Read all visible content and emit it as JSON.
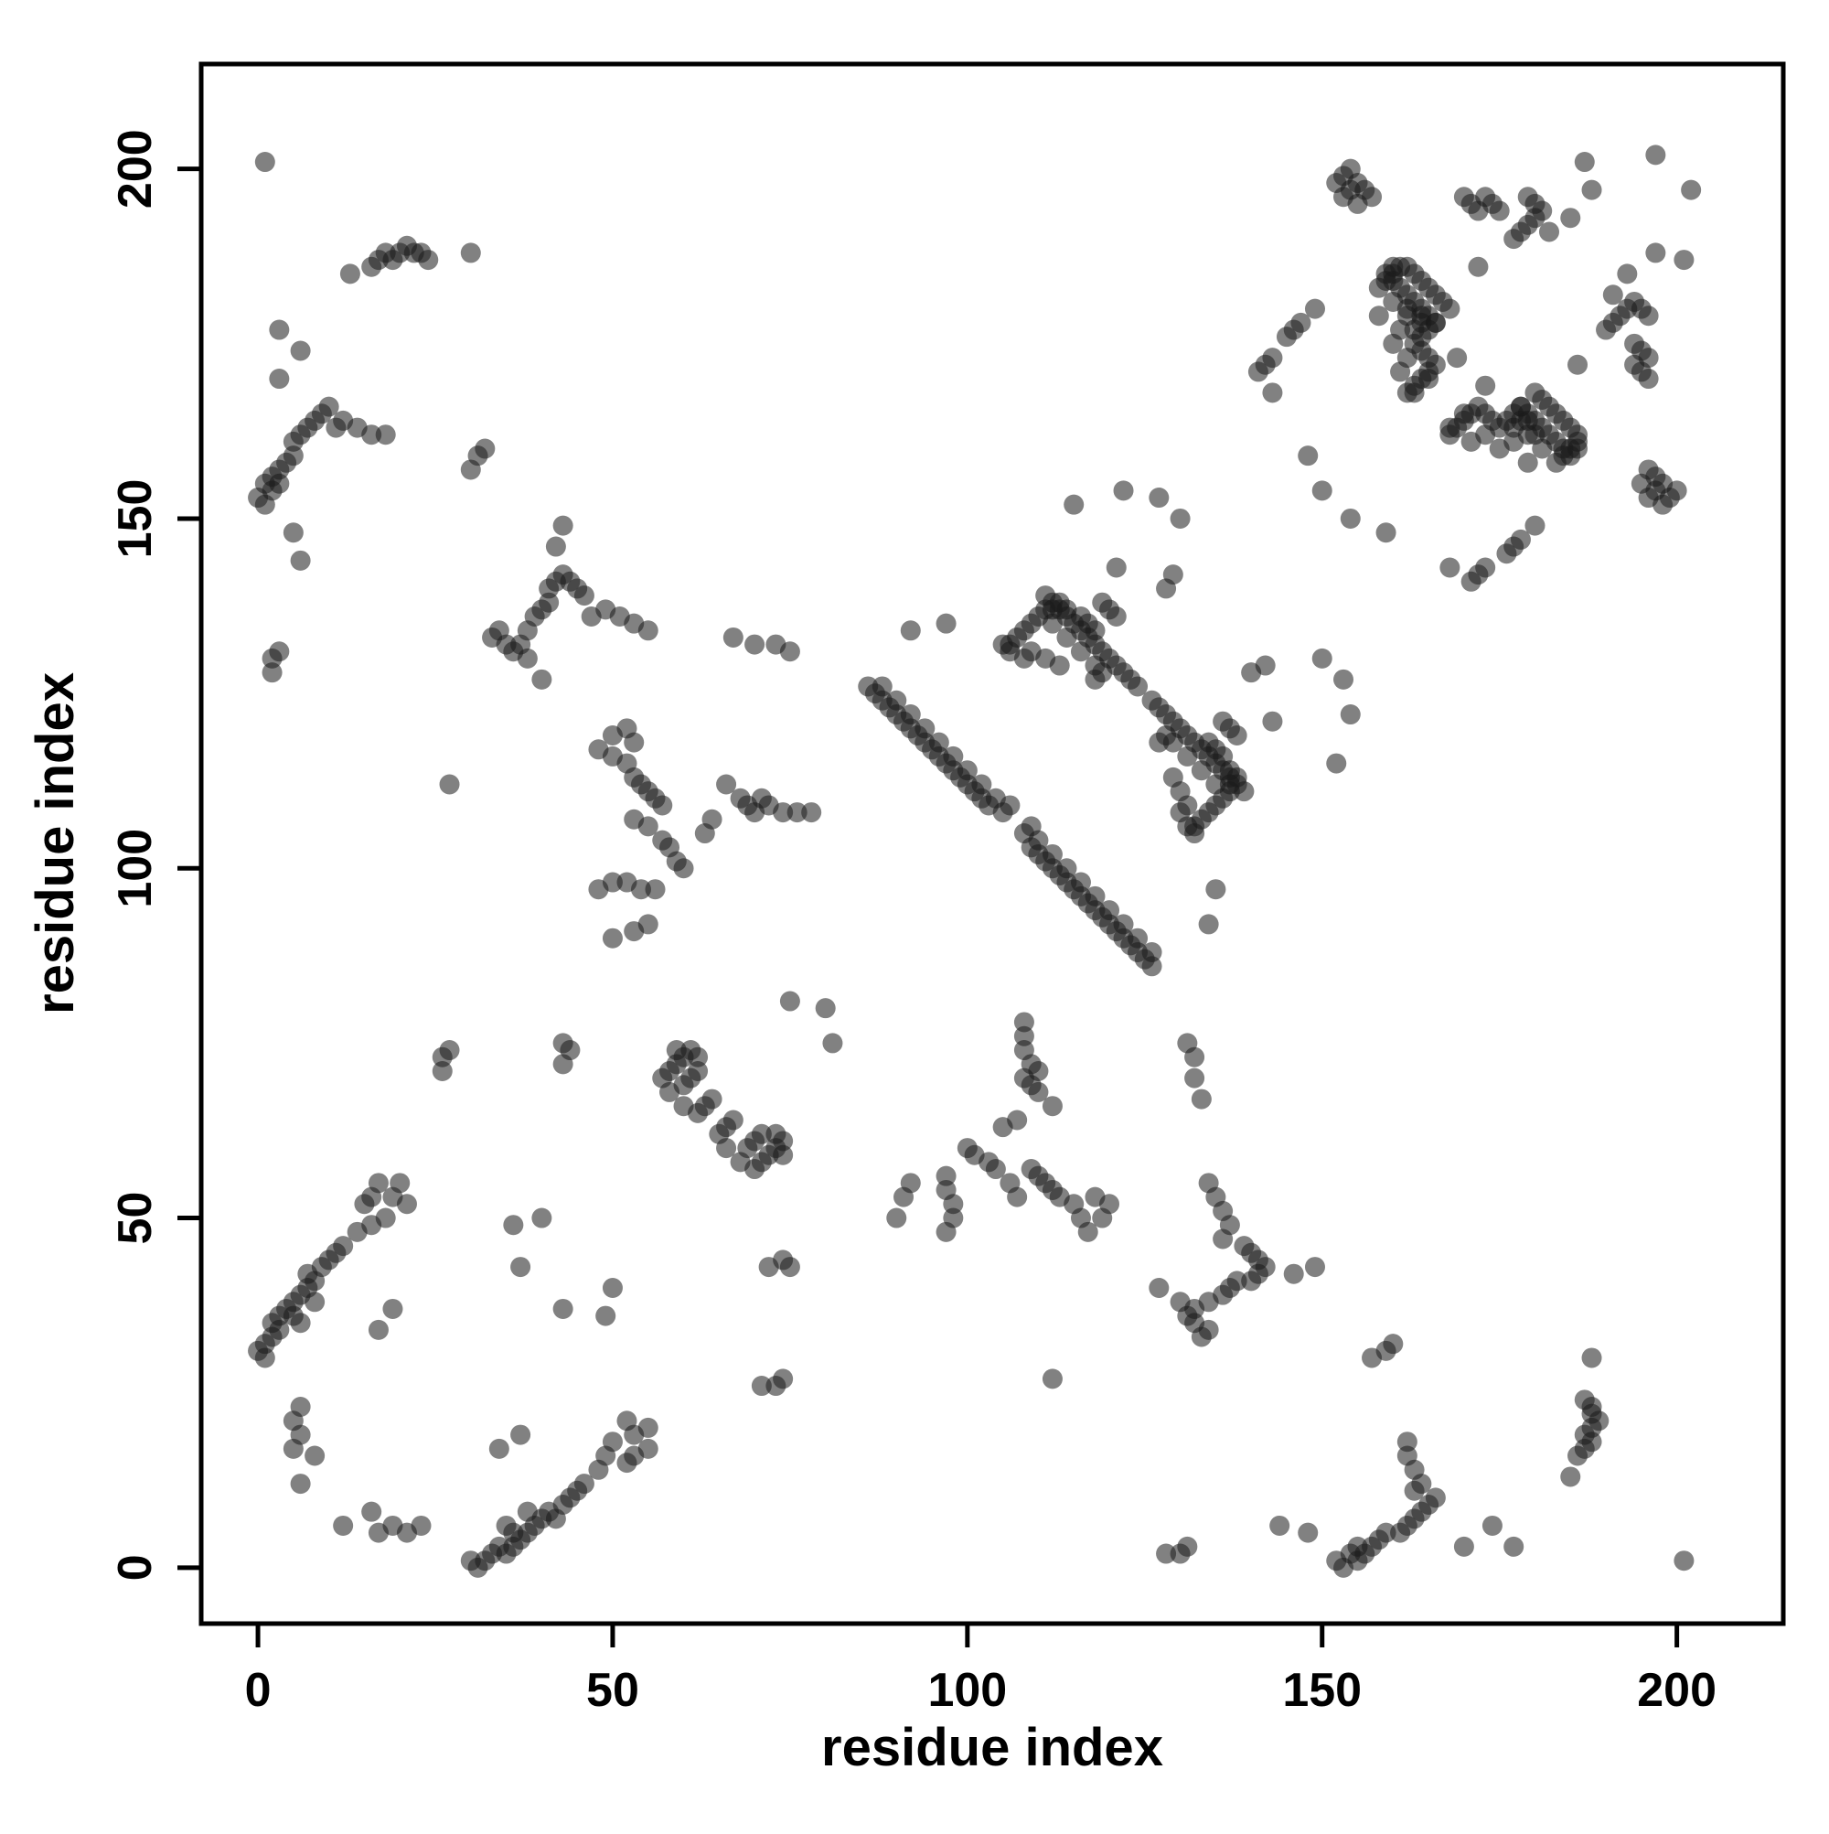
{
  "chart": {
    "xlabel": "residue index",
    "ylabel": "residue index"
  },
  "chart_data": {
    "type": "scatter",
    "title": "",
    "xlabel": "residue index",
    "ylabel": "residue index",
    "xlim": [
      -8,
      215
    ],
    "ylim": [
      -8,
      215
    ],
    "x_ticks": [
      0,
      50,
      100,
      150,
      200
    ],
    "y_ticks": [
      0,
      50,
      100,
      150,
      200
    ],
    "grid": false,
    "legend": null,
    "symmetric": true,
    "point_color": "#1a1a1a",
    "point_opacity": 0.55,
    "point_radius_px": 11,
    "points": [
      [
        1,
        201
      ],
      [
        3,
        177
      ],
      [
        197,
        202
      ],
      [
        187,
        201
      ],
      [
        188,
        197
      ],
      [
        13,
        185
      ],
      [
        16,
        186
      ],
      [
        17,
        187
      ],
      [
        18,
        188
      ],
      [
        19,
        187
      ],
      [
        20,
        188
      ],
      [
        21,
        189
      ],
      [
        22,
        188
      ],
      [
        23,
        188
      ],
      [
        24,
        187
      ],
      [
        30,
        188
      ],
      [
        30,
        157
      ],
      [
        31,
        159
      ],
      [
        32,
        160
      ],
      [
        0,
        153
      ],
      [
        1,
        152
      ],
      [
        1,
        155
      ],
      [
        2,
        154
      ],
      [
        2,
        156
      ],
      [
        3,
        155
      ],
      [
        3,
        157
      ],
      [
        4,
        158
      ],
      [
        5,
        159
      ],
      [
        5,
        161
      ],
      [
        6,
        162
      ],
      [
        7,
        163
      ],
      [
        8,
        164
      ],
      [
        9,
        165
      ],
      [
        10,
        166
      ],
      [
        11,
        163
      ],
      [
        12,
        164
      ],
      [
        14,
        163
      ],
      [
        16,
        162
      ],
      [
        18,
        162
      ],
      [
        5,
        148
      ],
      [
        6,
        144
      ],
      [
        2,
        128
      ],
      [
        2,
        130
      ],
      [
        3,
        131
      ],
      [
        33,
        133
      ],
      [
        34,
        134
      ],
      [
        35,
        132
      ],
      [
        36,
        131
      ],
      [
        37,
        132
      ],
      [
        38,
        130
      ],
      [
        38,
        134
      ],
      [
        39,
        136
      ],
      [
        40,
        137
      ],
      [
        41,
        138
      ],
      [
        41,
        140
      ],
      [
        42,
        141
      ],
      [
        43,
        142
      ],
      [
        44,
        141
      ],
      [
        45,
        140
      ],
      [
        46,
        139
      ],
      [
        47,
        136
      ],
      [
        49,
        137
      ],
      [
        51,
        136
      ],
      [
        53,
        135
      ],
      [
        55,
        134
      ],
      [
        40,
        127
      ],
      [
        42,
        146
      ],
      [
        43,
        149
      ],
      [
        27,
        112
      ],
      [
        26,
        73
      ],
      [
        27,
        74
      ],
      [
        26,
        71
      ],
      [
        6,
        19
      ],
      [
        8,
        16
      ],
      [
        6,
        12
      ],
      [
        5,
        17
      ],
      [
        5,
        21
      ],
      [
        6,
        23
      ],
      [
        17,
        34
      ],
      [
        19,
        37
      ],
      [
        37,
        43
      ],
      [
        36,
        49
      ],
      [
        40,
        50
      ],
      [
        43,
        72
      ],
      [
        44,
        74
      ],
      [
        43,
        75
      ],
      [
        0,
        31
      ],
      [
        1,
        30
      ],
      [
        1,
        32
      ],
      [
        2,
        33
      ],
      [
        2,
        35
      ],
      [
        3,
        34
      ],
      [
        3,
        36
      ],
      [
        4,
        37
      ],
      [
        5,
        36
      ],
      [
        5,
        38
      ],
      [
        6,
        39
      ],
      [
        6,
        35
      ],
      [
        7,
        40
      ],
      [
        7,
        42
      ],
      [
        8,
        38
      ],
      [
        8,
        41
      ],
      [
        9,
        43
      ],
      [
        10,
        44
      ],
      [
        11,
        45
      ],
      [
        12,
        46
      ],
      [
        14,
        48
      ],
      [
        15,
        52
      ],
      [
        16,
        49
      ],
      [
        16,
        53
      ],
      [
        17,
        55
      ],
      [
        18,
        50
      ],
      [
        19,
        53
      ],
      [
        20,
        55
      ],
      [
        21,
        52
      ],
      [
        48,
        117
      ],
      [
        50,
        116
      ],
      [
        52,
        115
      ],
      [
        53,
        113
      ],
      [
        54,
        112
      ],
      [
        55,
        111
      ],
      [
        56,
        110
      ],
      [
        57,
        109
      ],
      [
        53,
        107
      ],
      [
        55,
        106
      ],
      [
        57,
        104
      ],
      [
        58,
        103
      ],
      [
        59,
        101
      ],
      [
        60,
        100
      ],
      [
        52,
        98
      ],
      [
        54,
        97
      ],
      [
        56,
        97
      ],
      [
        48,
        97
      ],
      [
        50,
        98
      ],
      [
        63,
        105
      ],
      [
        64,
        107
      ],
      [
        50,
        119
      ],
      [
        52,
        120
      ],
      [
        53,
        118
      ],
      [
        57,
        70
      ],
      [
        58,
        71
      ],
      [
        59,
        72
      ],
      [
        60,
        73
      ],
      [
        58,
        68
      ],
      [
        60,
        69
      ],
      [
        61,
        70
      ],
      [
        62,
        71
      ],
      [
        60,
        66
      ],
      [
        62,
        65
      ],
      [
        63,
        66
      ],
      [
        64,
        67
      ],
      [
        59,
        74
      ],
      [
        61,
        74
      ],
      [
        62,
        73
      ],
      [
        66,
        112
      ],
      [
        68,
        110
      ],
      [
        69,
        109
      ],
      [
        70,
        108
      ],
      [
        71,
        110
      ],
      [
        72,
        109
      ],
      [
        74,
        108
      ],
      [
        76,
        108
      ],
      [
        78,
        108
      ],
      [
        67,
        133
      ],
      [
        70,
        132
      ],
      [
        73,
        132
      ],
      [
        75,
        131
      ],
      [
        80,
        80
      ],
      [
        81,
        75
      ],
      [
        50,
        90
      ],
      [
        53,
        91
      ],
      [
        55,
        92
      ],
      [
        86,
        126
      ],
      [
        87,
        125
      ],
      [
        88,
        126
      ],
      [
        88,
        124
      ],
      [
        89,
        123
      ],
      [
        90,
        124
      ],
      [
        90,
        122
      ],
      [
        91,
        121
      ],
      [
        92,
        122
      ],
      [
        92,
        120
      ],
      [
        93,
        119
      ],
      [
        94,
        120
      ],
      [
        94,
        118
      ],
      [
        95,
        117
      ],
      [
        96,
        118
      ],
      [
        96,
        116
      ],
      [
        97,
        115
      ],
      [
        98,
        116
      ],
      [
        98,
        114
      ],
      [
        99,
        113
      ],
      [
        100,
        114
      ],
      [
        100,
        112
      ],
      [
        101,
        111
      ],
      [
        102,
        112
      ],
      [
        102,
        110
      ],
      [
        103,
        109
      ],
      [
        104,
        110
      ],
      [
        105,
        108
      ],
      [
        106,
        109
      ],
      [
        92,
        134
      ],
      [
        97,
        135
      ],
      [
        106,
        132
      ],
      [
        107,
        133
      ],
      [
        108,
        134
      ],
      [
        109,
        135
      ],
      [
        110,
        136
      ],
      [
        111,
        137
      ],
      [
        112,
        137
      ],
      [
        113,
        138
      ],
      [
        114,
        137
      ],
      [
        116,
        136
      ],
      [
        117,
        135
      ],
      [
        118,
        134
      ],
      [
        109,
        131
      ],
      [
        111,
        130
      ],
      [
        113,
        129
      ],
      [
        118,
        127
      ],
      [
        119,
        128
      ],
      [
        115,
        152
      ],
      [
        122,
        154
      ],
      [
        127,
        153
      ],
      [
        126,
        124
      ],
      [
        127,
        123
      ],
      [
        128,
        122
      ],
      [
        129,
        121
      ],
      [
        130,
        120
      ],
      [
        131,
        119
      ],
      [
        132,
        118
      ],
      [
        133,
        117
      ],
      [
        134,
        116
      ],
      [
        135,
        115
      ],
      [
        129,
        118
      ],
      [
        131,
        116
      ],
      [
        133,
        114
      ],
      [
        135,
        112
      ],
      [
        136,
        114
      ],
      [
        137,
        113
      ],
      [
        138,
        112
      ],
      [
        139,
        111
      ],
      [
        136,
        121
      ],
      [
        137,
        120
      ],
      [
        138,
        119
      ],
      [
        130,
        108
      ],
      [
        131,
        106
      ],
      [
        132,
        105
      ],
      [
        140,
        128
      ],
      [
        142,
        129
      ],
      [
        143,
        121
      ],
      [
        150,
        130
      ],
      [
        154,
        150
      ],
      [
        141,
        171
      ],
      [
        142,
        172
      ],
      [
        143,
        173
      ],
      [
        145,
        176
      ],
      [
        146,
        177
      ],
      [
        147,
        178
      ],
      [
        149,
        180
      ],
      [
        152,
        198
      ],
      [
        153,
        199
      ],
      [
        154,
        200
      ],
      [
        154,
        197
      ],
      [
        155,
        198
      ],
      [
        156,
        197
      ],
      [
        153,
        196
      ],
      [
        155,
        195
      ],
      [
        157,
        196
      ],
      [
        158,
        183
      ],
      [
        159,
        184
      ],
      [
        160,
        185
      ],
      [
        161,
        186
      ],
      [
        162,
        186
      ],
      [
        163,
        185
      ],
      [
        164,
        184
      ],
      [
        165,
        183
      ],
      [
        166,
        182
      ],
      [
        160,
        181
      ],
      [
        162,
        180
      ],
      [
        164,
        179
      ],
      [
        166,
        178
      ],
      [
        158,
        179
      ],
      [
        167,
        181
      ],
      [
        168,
        180
      ],
      [
        169,
        173
      ],
      [
        163,
        168
      ],
      [
        165,
        170
      ],
      [
        170,
        196
      ],
      [
        171,
        195
      ],
      [
        172,
        194
      ],
      [
        173,
        196
      ],
      [
        174,
        195
      ],
      [
        175,
        194
      ],
      [
        182,
        191
      ],
      [
        185,
        193
      ],
      [
        168,
        162
      ],
      [
        169,
        163
      ],
      [
        170,
        164
      ],
      [
        171,
        165
      ],
      [
        172,
        166
      ],
      [
        173,
        165
      ],
      [
        174,
        164
      ],
      [
        175,
        163
      ],
      [
        176,
        164
      ],
      [
        177,
        165
      ],
      [
        178,
        166
      ],
      [
        179,
        165
      ],
      [
        180,
        164
      ],
      [
        181,
        163
      ],
      [
        182,
        162
      ],
      [
        183,
        161
      ],
      [
        184,
        160
      ],
      [
        185,
        159
      ],
      [
        186,
        160
      ],
      [
        175,
        160
      ],
      [
        177,
        161
      ],
      [
        179,
        162
      ],
      [
        171,
        161
      ],
      [
        173,
        162
      ],
      [
        177,
        163
      ],
      [
        178,
        164
      ],
      [
        190,
        177
      ],
      [
        191,
        178
      ],
      [
        192,
        179
      ],
      [
        193,
        180
      ],
      [
        194,
        181
      ],
      [
        195,
        180
      ],
      [
        196,
        179
      ],
      [
        186,
        172
      ],
      [
        3,
        170
      ],
      [
        6,
        174
      ],
      [
        143,
        168
      ],
      [
        148,
        159
      ]
    ]
  }
}
